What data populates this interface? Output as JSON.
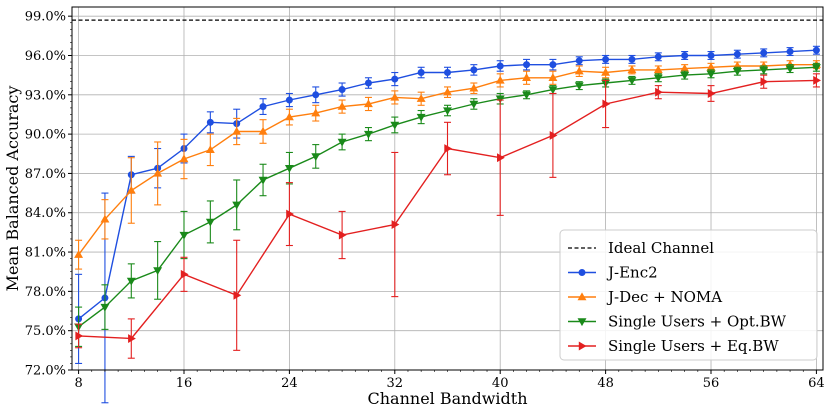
{
  "chart_data": {
    "type": "line",
    "title": "",
    "xlabel": "Channel Bandwidth",
    "ylabel": "Mean Balanced Accuracy",
    "xlim": [
      7.5,
      64.5
    ],
    "ylim": [
      72.0,
      99.7
    ],
    "xticks": [
      8,
      16,
      24,
      32,
      40,
      48,
      56,
      64
    ],
    "yticks": [
      72.0,
      75.0,
      78.0,
      81.0,
      84.0,
      87.0,
      90.0,
      93.0,
      96.0,
      99.0
    ],
    "ytick_labels": [
      "72.0%",
      "75.0%",
      "78.0%",
      "81.0%",
      "84.0%",
      "87.0%",
      "90.0%",
      "93.0%",
      "96.0%",
      "99.0%"
    ],
    "grid": true,
    "legend_position": "lower-right",
    "reference": {
      "name": "Ideal Channel",
      "value": 98.7,
      "style": "dashed",
      "color": "#000000"
    },
    "series": [
      {
        "name": "J-Enc2",
        "color": "#1f4fe0",
        "marker": "circle",
        "x": [
          8,
          10,
          12,
          14,
          16,
          18,
          20,
          22,
          24,
          26,
          28,
          30,
          32,
          34,
          36,
          38,
          40,
          42,
          44,
          46,
          48,
          50,
          52,
          54,
          56,
          58,
          60,
          62,
          64
        ],
        "y": [
          75.9,
          77.5,
          86.9,
          87.4,
          88.9,
          90.9,
          90.8,
          92.1,
          92.6,
          93.0,
          93.4,
          93.9,
          94.2,
          94.7,
          94.7,
          94.9,
          95.2,
          95.3,
          95.3,
          95.6,
          95.7,
          95.7,
          95.9,
          96.0,
          96.0,
          96.1,
          96.2,
          96.3,
          96.4
        ],
        "err": [
          3.4,
          8.0,
          1.4,
          1.5,
          1.1,
          0.8,
          1.1,
          0.6,
          0.5,
          0.6,
          0.5,
          0.4,
          0.5,
          0.4,
          0.4,
          0.4,
          0.4,
          0.4,
          0.4,
          0.3,
          0.3,
          0.3,
          0.3,
          0.3,
          0.3,
          0.3,
          0.3,
          0.3,
          0.3
        ]
      },
      {
        "name": "J-Dec + NOMA",
        "color": "#ff7f0e",
        "marker": "triangle-up",
        "x": [
          8,
          10,
          12,
          14,
          16,
          18,
          20,
          22,
          24,
          26,
          28,
          30,
          32,
          34,
          36,
          38,
          40,
          42,
          44,
          46,
          48,
          50,
          52,
          54,
          56,
          58,
          60,
          62,
          64
        ],
        "y": [
          80.8,
          83.5,
          85.7,
          87.0,
          88.1,
          88.8,
          90.2,
          90.2,
          91.3,
          91.6,
          92.1,
          92.3,
          92.8,
          92.7,
          93.2,
          93.5,
          94.1,
          94.3,
          94.3,
          94.8,
          94.7,
          94.9,
          94.9,
          95.0,
          95.1,
          95.2,
          95.2,
          95.3,
          95.3
        ],
        "err": [
          1.1,
          1.5,
          2.5,
          2.4,
          1.5,
          1.2,
          1.0,
          0.9,
          0.6,
          0.6,
          0.5,
          0.5,
          0.5,
          0.5,
          0.4,
          0.4,
          0.5,
          0.5,
          0.5,
          0.4,
          0.4,
          0.3,
          0.3,
          0.3,
          0.3,
          0.3,
          0.3,
          0.3,
          0.3
        ]
      },
      {
        "name": "Single Users + Opt.BW",
        "color": "#1a8a1a",
        "marker": "triangle-down",
        "x": [
          8,
          10,
          12,
          14,
          16,
          18,
          20,
          22,
          24,
          26,
          28,
          30,
          32,
          34,
          36,
          38,
          40,
          42,
          44,
          46,
          48,
          50,
          52,
          54,
          56,
          58,
          60,
          62,
          64
        ],
        "y": [
          75.3,
          76.8,
          78.8,
          79.6,
          82.3,
          83.3,
          84.6,
          86.5,
          87.4,
          88.3,
          89.4,
          90.0,
          90.7,
          91.3,
          91.8,
          92.3,
          92.7,
          93.0,
          93.4,
          93.7,
          93.9,
          94.1,
          94.3,
          94.5,
          94.6,
          94.8,
          94.9,
          95.0,
          95.1
        ],
        "err": [
          1.5,
          1.7,
          1.3,
          2.2,
          1.8,
          1.6,
          1.9,
          1.2,
          1.2,
          0.9,
          0.6,
          0.5,
          0.6,
          0.5,
          0.4,
          0.4,
          0.4,
          0.3,
          0.3,
          0.3,
          0.3,
          0.3,
          0.3,
          0.3,
          0.3,
          0.3,
          0.3,
          0.3,
          0.3
        ]
      },
      {
        "name": "Single Users + Eq.BW",
        "color": "#e32020",
        "marker": "triangle-right",
        "x": [
          8,
          12,
          16,
          20,
          24,
          28,
          32,
          36,
          40,
          44,
          48,
          52,
          56,
          60,
          64
        ],
        "y": [
          74.6,
          74.4,
          79.3,
          77.7,
          83.9,
          82.3,
          83.1,
          88.9,
          88.2,
          89.9,
          92.3,
          93.2,
          93.1,
          94.0,
          94.1
        ],
        "err": [
          0.9,
          1.5,
          1.3,
          4.2,
          2.4,
          1.8,
          5.5,
          2.0,
          4.4,
          3.2,
          1.8,
          0.5,
          0.6,
          0.5,
          0.5
        ]
      }
    ]
  }
}
